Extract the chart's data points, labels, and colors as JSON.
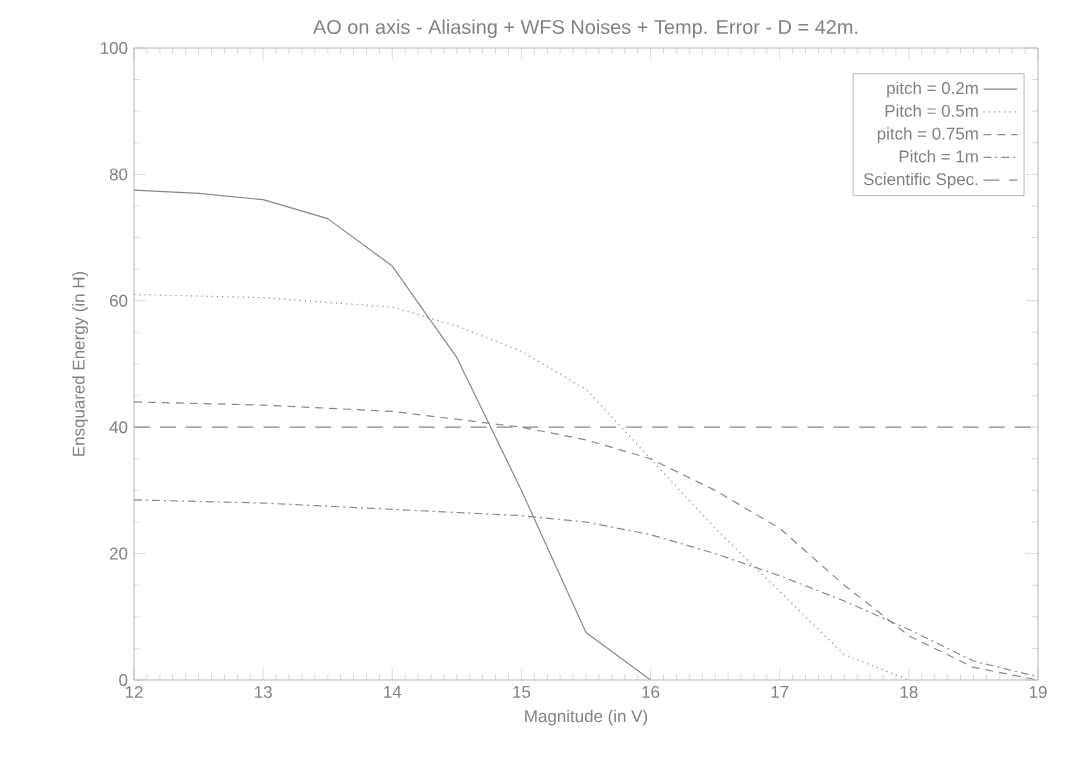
{
  "chart_data": {
    "type": "line",
    "title": "AO on axis - Aliasing + WFS Noises + Temp. Error - D = 42m.",
    "xlabel": "Magnitude (in V)",
    "ylabel": "Ensquared Energy (in H)",
    "xlim": [
      12,
      19
    ],
    "xticks": [
      12,
      13,
      14,
      15,
      16,
      17,
      18,
      19
    ],
    "ylim": [
      0,
      100
    ],
    "yticks": [
      0,
      20,
      40,
      60,
      80,
      100
    ],
    "grid": false,
    "legend": "top right",
    "series": [
      {
        "name": "pitch = 0.2m",
        "color": "#888888",
        "line_style": "solid",
        "x": [
          12,
          12.5,
          13,
          13.5,
          14,
          14.5,
          15,
          15.5,
          16
        ],
        "values": [
          77.5,
          77,
          76,
          73,
          65.5,
          51,
          30,
          7.5,
          0
        ]
      },
      {
        "name": "Pitch = 0.5m",
        "color": "#888888",
        "line_style": "dotted",
        "x": [
          12,
          13,
          14,
          14.5,
          15,
          15.5,
          16,
          16.5,
          17,
          17.5,
          18
        ],
        "values": [
          61,
          60.5,
          59,
          56,
          52,
          46,
          35,
          24,
          14,
          4,
          0
        ]
      },
      {
        "name": "pitch = 0.75m",
        "color": "#888888",
        "line_style": "dashed",
        "x": [
          12,
          13,
          14,
          15,
          15.5,
          16,
          16.5,
          17,
          17.5,
          18,
          18.5,
          19
        ],
        "values": [
          44,
          43.5,
          42.5,
          40,
          38,
          35,
          30,
          24,
          15,
          7,
          2,
          0
        ]
      },
      {
        "name": "Pitch = 1m",
        "color": "#888888",
        "line_style": "dashdot",
        "x": [
          12,
          13,
          14,
          15,
          15.5,
          16,
          16.5,
          17,
          17.5,
          18,
          18.5,
          19
        ],
        "values": [
          28.5,
          28,
          27,
          26,
          25,
          23,
          20,
          16.5,
          12.5,
          8,
          3,
          0.5
        ]
      },
      {
        "name": "Scientific Spec.",
        "color": "#888888",
        "line_style": "longdash",
        "x": [
          12,
          19
        ],
        "values": [
          40,
          40
        ]
      }
    ]
  }
}
